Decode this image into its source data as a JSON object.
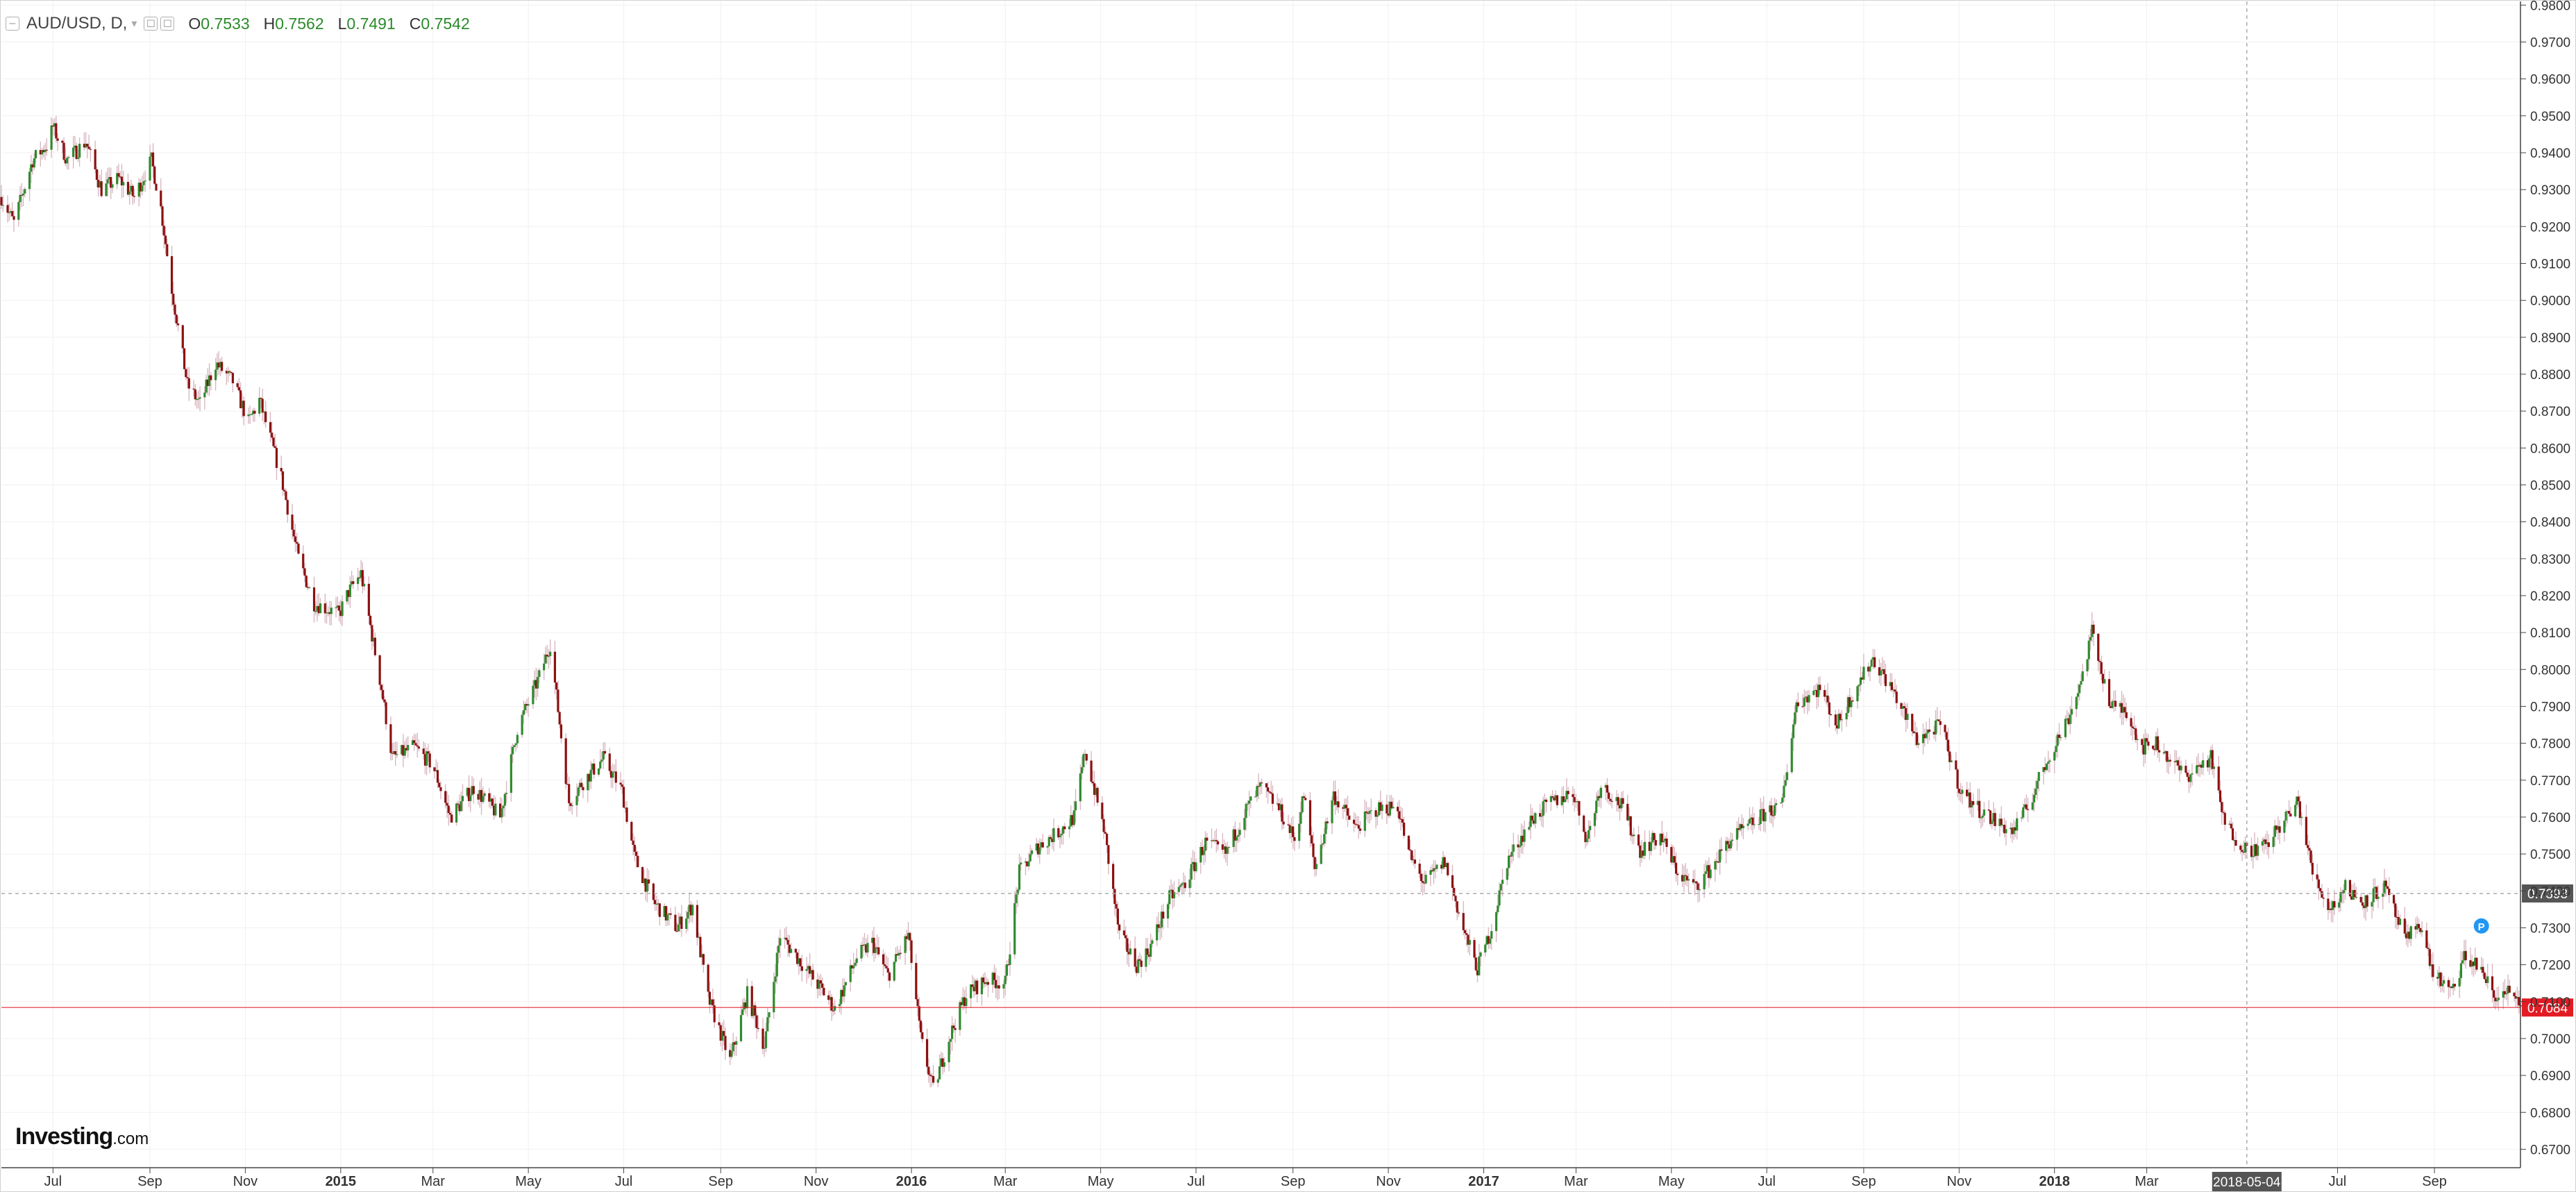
{
  "header": {
    "symbol": "AUD/USD, D,",
    "open": "0.7533",
    "high": "0.7562",
    "low": "0.7491",
    "close": "0.7542",
    "collapse_icon": "minus-box-icon",
    "settings_icons": [
      "square-icon",
      "square-icon"
    ]
  },
  "branding": {
    "logo": "Investing",
    "logo_suffix": ".com"
  },
  "chart_data": {
    "type": "candlestick",
    "symbol": "AUD/USD",
    "interval": "D",
    "y_ticks": [
      "0.6700",
      "0.6800",
      "0.6900",
      "0.7000",
      "0.7100",
      "0.7200",
      "0.7300",
      "0.7400",
      "0.7500",
      "0.7600",
      "0.7700",
      "0.7800",
      "0.7900",
      "0.8000",
      "0.8100",
      "0.8200",
      "0.8300",
      "0.8400",
      "0.8500",
      "0.8600",
      "0.8700",
      "0.8800",
      "0.8900",
      "0.9000",
      "0.9100",
      "0.9200",
      "0.9300",
      "0.9400",
      "0.9500",
      "0.9600",
      "0.9700",
      "0.9800"
    ],
    "ylim": [
      0.665,
      0.981
    ],
    "x_ticks": [
      {
        "label": "Jul",
        "date": "2014-07-01",
        "bold": false
      },
      {
        "label": "Sep",
        "date": "2014-09-01",
        "bold": false
      },
      {
        "label": "Nov",
        "date": "2014-11-01",
        "bold": false
      },
      {
        "label": "2015",
        "date": "2015-01-01",
        "bold": true
      },
      {
        "label": "Mar",
        "date": "2015-03-01",
        "bold": false
      },
      {
        "label": "May",
        "date": "2015-05-01",
        "bold": false
      },
      {
        "label": "Jul",
        "date": "2015-07-01",
        "bold": false
      },
      {
        "label": "Sep",
        "date": "2015-09-01",
        "bold": false
      },
      {
        "label": "Nov",
        "date": "2015-11-01",
        "bold": false
      },
      {
        "label": "2016",
        "date": "2016-01-01",
        "bold": true
      },
      {
        "label": "Mar",
        "date": "2016-03-01",
        "bold": false
      },
      {
        "label": "May",
        "date": "2016-05-01",
        "bold": false
      },
      {
        "label": "Jul",
        "date": "2016-07-01",
        "bold": false
      },
      {
        "label": "Sep",
        "date": "2016-09-01",
        "bold": false
      },
      {
        "label": "Nov",
        "date": "2016-11-01",
        "bold": false
      },
      {
        "label": "2017",
        "date": "2017-01-01",
        "bold": true
      },
      {
        "label": "Mar",
        "date": "2017-03-01",
        "bold": false
      },
      {
        "label": "May",
        "date": "2017-05-01",
        "bold": false
      },
      {
        "label": "Jul",
        "date": "2017-07-01",
        "bold": false
      },
      {
        "label": "Sep",
        "date": "2017-09-01",
        "bold": false
      },
      {
        "label": "Nov",
        "date": "2017-11-01",
        "bold": false
      },
      {
        "label": "2018",
        "date": "2018-01-01",
        "bold": true
      },
      {
        "label": "Mar",
        "date": "2018-03-01",
        "bold": false
      },
      {
        "label": "Jul",
        "date": "2018-07-01",
        "bold": false
      },
      {
        "label": "Sep",
        "date": "2018-09-01",
        "bold": false
      }
    ],
    "x_range": [
      "2014-05-29",
      "2018-10-26"
    ],
    "crosshair": {
      "date_label": "2018-05-04",
      "date": "2018-05-04",
      "price_label": "0.7393",
      "price": 0.7393
    },
    "last_price": {
      "label": "0.7084",
      "price": 0.7084
    },
    "marker": {
      "label": "P",
      "date": "2018-10-01",
      "price": 0.7305
    },
    "price_path": [
      [
        "2014-05-29",
        0.928
      ],
      [
        "2014-06-06",
        0.921
      ],
      [
        "2014-06-18",
        0.938
      ],
      [
        "2014-06-27",
        0.942
      ],
      [
        "2014-07-01",
        0.947
      ],
      [
        "2014-07-10",
        0.938
      ],
      [
        "2014-07-22",
        0.943
      ],
      [
        "2014-08-01",
        0.93
      ],
      [
        "2014-08-12",
        0.933
      ],
      [
        "2014-08-22",
        0.928
      ],
      [
        "2014-09-02",
        0.938
      ],
      [
        "2014-09-08",
        0.925
      ],
      [
        "2014-09-15",
        0.903
      ],
      [
        "2014-09-25",
        0.877
      ],
      [
        "2014-10-03",
        0.872
      ],
      [
        "2014-10-13",
        0.883
      ],
      [
        "2014-10-24",
        0.878
      ],
      [
        "2014-11-03",
        0.867
      ],
      [
        "2014-11-10",
        0.873
      ],
      [
        "2014-11-24",
        0.852
      ],
      [
        "2014-12-05",
        0.83
      ],
      [
        "2014-12-15",
        0.818
      ],
      [
        "2014-12-31",
        0.815
      ],
      [
        "2015-01-06",
        0.821
      ],
      [
        "2015-01-14",
        0.826
      ],
      [
        "2015-01-27",
        0.795
      ],
      [
        "2015-02-03",
        0.776
      ],
      [
        "2015-02-17",
        0.779
      ],
      [
        "2015-03-01",
        0.774
      ],
      [
        "2015-03-12",
        0.76
      ],
      [
        "2015-03-27",
        0.768
      ],
      [
        "2015-04-13",
        0.76
      ],
      [
        "2015-04-24",
        0.784
      ],
      [
        "2015-05-08",
        0.798
      ],
      [
        "2015-05-15",
        0.807
      ],
      [
        "2015-05-27",
        0.764
      ],
      [
        "2015-06-04",
        0.769
      ],
      [
        "2015-06-18",
        0.776
      ],
      [
        "2015-06-30",
        0.767
      ],
      [
        "2015-07-08",
        0.749
      ],
      [
        "2015-07-20",
        0.737
      ],
      [
        "2015-08-04",
        0.73
      ],
      [
        "2015-08-14",
        0.736
      ],
      [
        "2015-08-24",
        0.711
      ],
      [
        "2015-09-07",
        0.694
      ],
      [
        "2015-09-18",
        0.712
      ],
      [
        "2015-09-29",
        0.698
      ],
      [
        "2015-10-09",
        0.728
      ],
      [
        "2015-10-20",
        0.722
      ],
      [
        "2015-11-05",
        0.713
      ],
      [
        "2015-11-13",
        0.708
      ],
      [
        "2015-11-27",
        0.722
      ],
      [
        "2015-12-07",
        0.726
      ],
      [
        "2015-12-17",
        0.717
      ],
      [
        "2015-12-30",
        0.728
      ],
      [
        "2016-01-07",
        0.7
      ],
      [
        "2016-01-15",
        0.686
      ],
      [
        "2016-01-25",
        0.7
      ],
      [
        "2016-02-05",
        0.712
      ],
      [
        "2016-02-18",
        0.716
      ],
      [
        "2016-03-01",
        0.715
      ],
      [
        "2016-03-10",
        0.745
      ],
      [
        "2016-03-22",
        0.752
      ],
      [
        "2016-04-04",
        0.756
      ],
      [
        "2016-04-14",
        0.76
      ],
      [
        "2016-04-21",
        0.778
      ],
      [
        "2016-05-03",
        0.757
      ],
      [
        "2016-05-13",
        0.728
      ],
      [
        "2016-05-24",
        0.72
      ],
      [
        "2016-06-01",
        0.724
      ],
      [
        "2016-06-14",
        0.738
      ],
      [
        "2016-06-24",
        0.742
      ],
      [
        "2016-07-07",
        0.753
      ],
      [
        "2016-07-20",
        0.75
      ],
      [
        "2016-08-02",
        0.762
      ],
      [
        "2016-08-11",
        0.768
      ],
      [
        "2016-08-22",
        0.763
      ],
      [
        "2016-09-02",
        0.754
      ],
      [
        "2016-09-08",
        0.766
      ],
      [
        "2016-09-15",
        0.746
      ],
      [
        "2016-09-27",
        0.766
      ],
      [
        "2016-10-11",
        0.757
      ],
      [
        "2016-10-24",
        0.762
      ],
      [
        "2016-11-07",
        0.763
      ],
      [
        "2016-11-14",
        0.75
      ],
      [
        "2016-11-24",
        0.742
      ],
      [
        "2016-12-07",
        0.748
      ],
      [
        "2016-12-20",
        0.728
      ],
      [
        "2016-12-28",
        0.719
      ],
      [
        "2017-01-06",
        0.73
      ],
      [
        "2017-01-16",
        0.748
      ],
      [
        "2017-01-31",
        0.759
      ],
      [
        "2017-02-10",
        0.763
      ],
      [
        "2017-02-27",
        0.767
      ],
      [
        "2017-03-08",
        0.754
      ],
      [
        "2017-03-17",
        0.769
      ],
      [
        "2017-03-30",
        0.763
      ],
      [
        "2017-04-11",
        0.751
      ],
      [
        "2017-04-24",
        0.755
      ],
      [
        "2017-05-05",
        0.745
      ],
      [
        "2017-05-16",
        0.741
      ],
      [
        "2017-05-26",
        0.746
      ],
      [
        "2017-06-08",
        0.754
      ],
      [
        "2017-06-21",
        0.758
      ],
      [
        "2017-07-03",
        0.762
      ],
      [
        "2017-07-10",
        0.762
      ],
      [
        "2017-07-20",
        0.791
      ],
      [
        "2017-08-04",
        0.795
      ],
      [
        "2017-08-15",
        0.785
      ],
      [
        "2017-08-28",
        0.796
      ],
      [
        "2017-09-07",
        0.803
      ],
      [
        "2017-09-20",
        0.794
      ],
      [
        "2017-10-05",
        0.781
      ],
      [
        "2017-10-20",
        0.785
      ],
      [
        "2017-11-02",
        0.767
      ],
      [
        "2017-11-14",
        0.762
      ],
      [
        "2017-11-24",
        0.759
      ],
      [
        "2017-12-05",
        0.756
      ],
      [
        "2017-12-14",
        0.762
      ],
      [
        "2017-12-28",
        0.776
      ],
      [
        "2018-01-10",
        0.787
      ],
      [
        "2018-01-18",
        0.797
      ],
      [
        "2018-01-25",
        0.81
      ],
      [
        "2018-02-06",
        0.79
      ],
      [
        "2018-02-16",
        0.789
      ],
      [
        "2018-02-26",
        0.779
      ],
      [
        "2018-03-07",
        0.78
      ],
      [
        "2018-03-15",
        0.776
      ],
      [
        "2018-03-26",
        0.771
      ],
      [
        "2018-04-11",
        0.776
      ],
      [
        "2018-04-20",
        0.758
      ],
      [
        "2018-05-04",
        0.751
      ],
      [
        "2018-05-16",
        0.752
      ],
      [
        "2018-05-24",
        0.757
      ],
      [
        "2018-06-06",
        0.764
      ],
      [
        "2018-06-15",
        0.745
      ],
      [
        "2018-06-26",
        0.735
      ],
      [
        "2018-07-06",
        0.741
      ],
      [
        "2018-07-17",
        0.737
      ],
      [
        "2018-07-31",
        0.741
      ],
      [
        "2018-08-14",
        0.726
      ],
      [
        "2018-08-22",
        0.732
      ],
      [
        "2018-08-31",
        0.718
      ],
      [
        "2018-09-12",
        0.712
      ],
      [
        "2018-09-20",
        0.722
      ],
      [
        "2018-10-01",
        0.719
      ],
      [
        "2018-10-10",
        0.71
      ],
      [
        "2018-10-16",
        0.714
      ],
      [
        "2018-10-26",
        0.7084
      ]
    ],
    "colors": {
      "up": "#2e8b2e",
      "down": "#8b1010",
      "wick": "#d6b3bd",
      "grid": "#f0f0f0",
      "axis": "#444444",
      "crosshair": "#aaaaaa",
      "last": "#e31b23",
      "marker": "#2196f3",
      "crosshair_tag": "#555555"
    },
    "grid": true
  }
}
